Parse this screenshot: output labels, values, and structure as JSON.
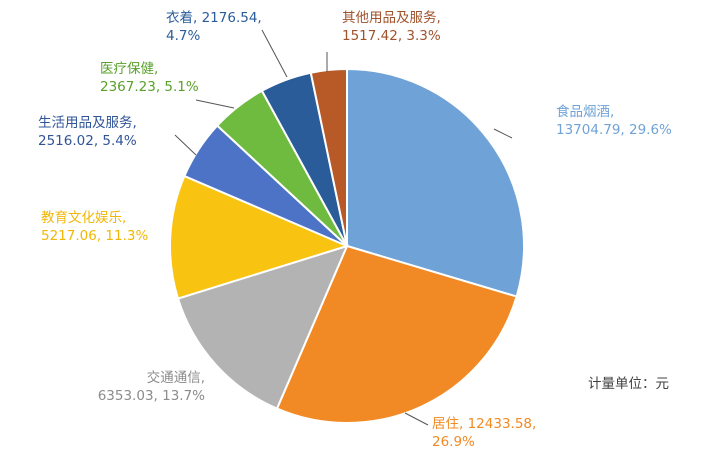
{
  "chart_data": {
    "type": "pie",
    "title": "",
    "unit_note": "计量单位：元",
    "slices": [
      {
        "label": "食品烟酒",
        "value": 13704.79,
        "percent": "29.6%",
        "color": "#6FA3D8",
        "label_color": "#6FA3D8"
      },
      {
        "label": "居住",
        "value": 12433.58,
        "percent": "26.9%",
        "color": "#F18A24",
        "label_color": "#F18A24"
      },
      {
        "label": "交通通信",
        "value": 6353.03,
        "percent": "13.7%",
        "color": "#B3B3B3",
        "label_color": "#8C8C8C"
      },
      {
        "label": "教育文化娱乐",
        "value": 5217.06,
        "percent": "11.3%",
        "color": "#F9C312",
        "label_color": "#F2B705"
      },
      {
        "label": "生活用品及服务",
        "value": 2516.02,
        "percent": "5.4%",
        "color": "#4D73C7",
        "label_color": "#2F5597"
      },
      {
        "label": "医疗保健",
        "value": 2367.23,
        "percent": "5.1%",
        "color": "#6FBB3F",
        "label_color": "#5AA02C"
      },
      {
        "label": "衣着",
        "value": 2176.54,
        "percent": "4.7%",
        "color": "#2A5C9A",
        "label_color": "#2A5C9A"
      },
      {
        "label": "其他用品及服务",
        "value": 1517.42,
        "percent": "3.3%",
        "color": "#B85A28",
        "label_color": "#A0522D"
      }
    ]
  }
}
